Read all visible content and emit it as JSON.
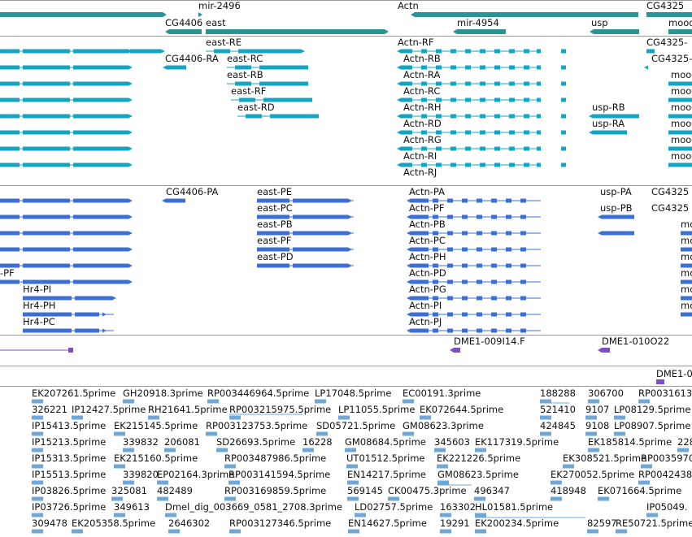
{
  "colors": {
    "gene": "#2b9393",
    "transcript": "#15a4c4",
    "cds": "#3c6fd4",
    "est": "#7d4fc7",
    "cdna": "#6fa8d6",
    "border": "#9a9a9a"
  },
  "tracks": {
    "genes": {
      "features": [
        {
          "label": "mir-2496"
        },
        {
          "label": "Actn"
        },
        {
          "label": "CG4325"
        },
        {
          "label": "CG4406"
        },
        {
          "label": "east"
        },
        {
          "label": "mir-4954"
        },
        {
          "label": "usp"
        },
        {
          "label": "mood"
        }
      ]
    },
    "transcripts": {
      "features": [
        {
          "label": "east-RE"
        },
        {
          "label": "Actn-RF"
        },
        {
          "label": "CG4325-"
        },
        {
          "label": "CG4406-RA"
        },
        {
          "label": "east-RC"
        },
        {
          "label": "Actn-RB"
        },
        {
          "label": "CG4325-"
        },
        {
          "label": "east-RB"
        },
        {
          "label": "Actn-RA"
        },
        {
          "label": "mood"
        },
        {
          "label": "east-RF"
        },
        {
          "label": "Actn-RC"
        },
        {
          "label": "mood"
        },
        {
          "label": "east-RD"
        },
        {
          "label": "Actn-RH"
        },
        {
          "label": "usp-RB"
        },
        {
          "label": "mood"
        },
        {
          "label": "Actn-RD"
        },
        {
          "label": "usp-RA"
        },
        {
          "label": "mood"
        },
        {
          "label": "Actn-RG"
        },
        {
          "label": "mood"
        },
        {
          "label": "Actn-RI"
        },
        {
          "label": "mood"
        },
        {
          "label": "Actn-RJ"
        }
      ]
    },
    "cds": {
      "features": [
        {
          "label": "CG4406-PA"
        },
        {
          "label": "east-PE"
        },
        {
          "label": "Actn-PA"
        },
        {
          "label": "usp-PA"
        },
        {
          "label": "CG4325"
        },
        {
          "label": "east-PC"
        },
        {
          "label": "Actn-PF"
        },
        {
          "label": "usp-PB"
        },
        {
          "label": "CG4325"
        },
        {
          "label": "east-PB"
        },
        {
          "label": "Actn-PB"
        },
        {
          "label": "mo"
        },
        {
          "label": "east-PF"
        },
        {
          "label": "Actn-PC"
        },
        {
          "label": "mo"
        },
        {
          "label": "east-PD"
        },
        {
          "label": "Actn-PH"
        },
        {
          "label": "mo"
        },
        {
          "label": "-PF"
        },
        {
          "label": "Actn-PD"
        },
        {
          "label": "mo"
        },
        {
          "label": "Hr4-PI"
        },
        {
          "label": "Actn-PG"
        },
        {
          "label": "mo"
        },
        {
          "label": "Hr4-PH"
        },
        {
          "label": "Actn-PI"
        },
        {
          "label": "mo"
        },
        {
          "label": "Hr4-PC"
        },
        {
          "label": "Actn-PJ"
        }
      ]
    },
    "est_1": {
      "features": [
        {
          "label": "DME1-009I14.F"
        },
        {
          "label": "DME1-010O22"
        }
      ]
    },
    "est_2": {
      "features": [
        {
          "label": "DME1-0"
        }
      ]
    },
    "cdna": {
      "features": [
        {
          "label": "EK207261.5prime"
        },
        {
          "label": "GH20918.3prime"
        },
        {
          "label": "RP003446964.5prime"
        },
        {
          "label": "LP17048.5prime"
        },
        {
          "label": "EC00191.3prime"
        },
        {
          "label": "188288"
        },
        {
          "label": "306700"
        },
        {
          "label": "RP0031613"
        },
        {
          "label": "326221"
        },
        {
          "label": "IP12427.5prime"
        },
        {
          "label": "RH21641.5prime"
        },
        {
          "label": "RP003215975.5prime"
        },
        {
          "label": "LP11055.5prime"
        },
        {
          "label": "EK072644.5prime"
        },
        {
          "label": "521410"
        },
        {
          "label": "9107"
        },
        {
          "label": "LP08129.5prime"
        },
        {
          "label": "IP15413.5prime"
        },
        {
          "label": "EK215145.5prime"
        },
        {
          "label": "RP003123753.5prime"
        },
        {
          "label": "SD05721.5prime"
        },
        {
          "label": "GM08623.3prime"
        },
        {
          "label": "424845"
        },
        {
          "label": "9108"
        },
        {
          "label": "LP08907.5prime"
        },
        {
          "label": "IP15213.5prime"
        },
        {
          "label": "339832"
        },
        {
          "label": "206081"
        },
        {
          "label": "SD26693.5prime"
        },
        {
          "label": "16228"
        },
        {
          "label": "GM08684.5prime"
        },
        {
          "label": "345603"
        },
        {
          "label": "EK117319.5prime"
        },
        {
          "label": "EK185814.5prime"
        },
        {
          "label": "228"
        },
        {
          "label": "IP15313.5prime"
        },
        {
          "label": "EK215160.5prime"
        },
        {
          "label": "RP003487986.5prime"
        },
        {
          "label": "UT01512.5prime"
        },
        {
          "label": "EK221226.5prime"
        },
        {
          "label": "EK308521.5prime"
        },
        {
          "label": "RP0035970"
        },
        {
          "label": "IP15513.5prime"
        },
        {
          "label": "339820"
        },
        {
          "label": "EP02164.3prime"
        },
        {
          "label": "RP003141594.5prime"
        },
        {
          "label": "EN14217.5prime"
        },
        {
          "label": "GM08623.5prime"
        },
        {
          "label": "EK270052.5prime"
        },
        {
          "label": "RP0042438"
        },
        {
          "label": "IP03826.5prime"
        },
        {
          "label": "325081"
        },
        {
          "label": "482489"
        },
        {
          "label": "RP003169859.5prime"
        },
        {
          "label": "569145"
        },
        {
          "label": "CK00475.3prime"
        },
        {
          "label": "496347"
        },
        {
          "label": "418948"
        },
        {
          "label": "EK071664.5prime"
        },
        {
          "label": "IP03726.5prime"
        },
        {
          "label": "349613"
        },
        {
          "label": "Dmel_dig_003669_0581_2708.3prime"
        },
        {
          "label": "LD02757.5prime"
        },
        {
          "label": "163302"
        },
        {
          "label": "HL01581.5prime"
        },
        {
          "label": "IP05049."
        },
        {
          "label": "309478"
        },
        {
          "label": "EK205358.5prime"
        },
        {
          "label": "2646302"
        },
        {
          "label": "RP003127346.5prime"
        },
        {
          "label": "EN14627.5prime"
        },
        {
          "label": "19291"
        },
        {
          "label": "EK200234.5prime"
        },
        {
          "label": "82597"
        },
        {
          "label": "RE50721.5prime"
        }
      ]
    }
  }
}
